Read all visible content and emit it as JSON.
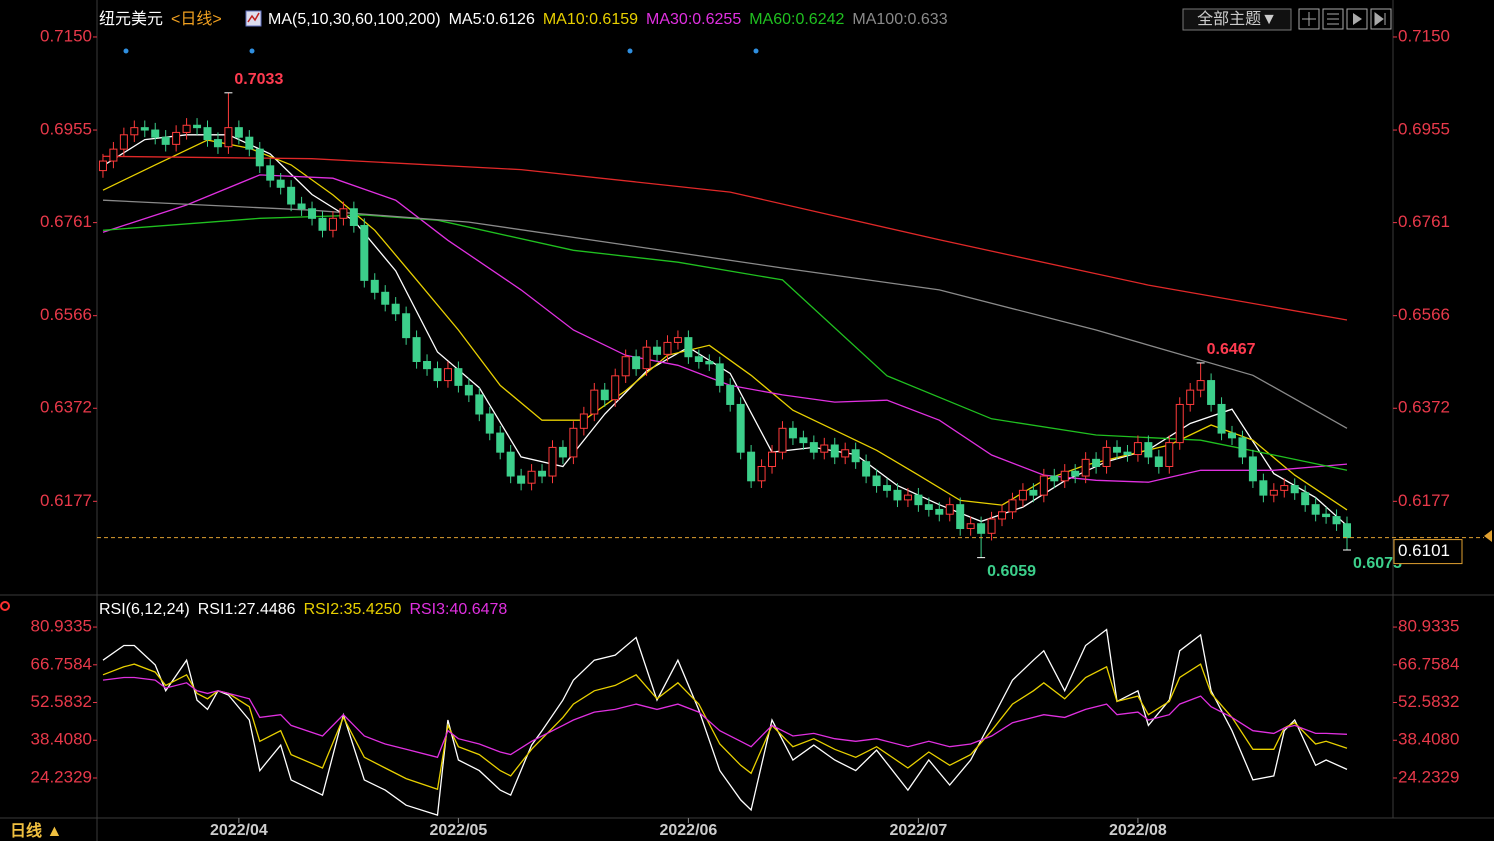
{
  "toolbar": {
    "theme_menu": "全部主题▼"
  },
  "footer": {
    "period_tab": "日线 ▲"
  },
  "chart_data": [
    {
      "type": "candlestick",
      "title": "纽元美元",
      "period": "<日线>",
      "indicator": "MA(5,10,30,60,100,200)",
      "x": [
        0,
        1,
        2,
        3,
        4,
        5,
        6,
        7,
        8,
        9,
        10,
        11,
        12,
        13,
        14,
        15,
        16,
        17,
        18,
        19,
        20,
        21,
        22,
        23,
        24,
        25,
        26,
        27,
        28,
        29,
        30,
        31,
        32,
        33,
        34,
        35,
        36,
        37,
        38,
        39,
        40,
        41,
        42,
        43,
        44,
        45,
        46,
        47,
        48,
        49,
        50,
        51,
        52,
        53,
        54,
        55,
        56,
        57,
        58,
        59,
        60,
        61,
        62,
        63,
        64,
        65,
        66,
        67,
        68,
        69,
        70,
        71,
        72,
        73,
        74,
        75,
        76,
        77,
        78,
        79,
        80,
        81,
        82,
        83,
        84,
        85,
        86,
        87,
        88,
        89,
        90,
        91,
        92,
        93,
        94,
        95,
        96,
        97,
        98,
        99,
        100,
        101,
        102,
        103,
        104,
        105,
        106,
        107,
        108,
        109,
        110,
        111,
        112,
        113,
        114,
        115,
        116,
        117,
        118,
        119
      ],
      "open": [
        0.687,
        0.689,
        0.6915,
        0.6945,
        0.696,
        0.6955,
        0.694,
        0.6925,
        0.695,
        0.6965,
        0.696,
        0.6935,
        0.692,
        0.696,
        0.694,
        0.6915,
        0.688,
        0.685,
        0.6835,
        0.68,
        0.679,
        0.677,
        0.6745,
        0.677,
        0.679,
        0.6755,
        0.664,
        0.6615,
        0.659,
        0.657,
        0.652,
        0.647,
        0.6455,
        0.643,
        0.6455,
        0.642,
        0.64,
        0.636,
        0.632,
        0.628,
        0.623,
        0.6215,
        0.624,
        0.623,
        0.629,
        0.627,
        0.633,
        0.636,
        0.641,
        0.639,
        0.644,
        0.648,
        0.6455,
        0.65,
        0.6485,
        0.651,
        0.652,
        0.648,
        0.647,
        0.6465,
        0.642,
        0.638,
        0.628,
        0.622,
        0.625,
        0.628,
        0.633,
        0.631,
        0.63,
        0.628,
        0.6295,
        0.627,
        0.6285,
        0.626,
        0.623,
        0.621,
        0.62,
        0.618,
        0.619,
        0.617,
        0.616,
        0.615,
        0.617,
        0.612,
        0.613,
        0.611,
        0.614,
        0.6155,
        0.618,
        0.62,
        0.619,
        0.623,
        0.622,
        0.624,
        0.623,
        0.6265,
        0.625,
        0.629,
        0.628,
        0.6275,
        0.63,
        0.627,
        0.625,
        0.63,
        0.638,
        0.641,
        0.643,
        0.638,
        0.632,
        0.631,
        0.627,
        0.622,
        0.619,
        0.62,
        0.621,
        0.6195,
        0.617,
        0.615,
        0.6145,
        0.613
      ],
      "high": [
        0.6905,
        0.693,
        0.696,
        0.6975,
        0.6975,
        0.697,
        0.6955,
        0.6965,
        0.698,
        0.698,
        0.6975,
        0.695,
        0.7033,
        0.6975,
        0.6955,
        0.693,
        0.6895,
        0.6865,
        0.685,
        0.6815,
        0.6805,
        0.6785,
        0.6785,
        0.6805,
        0.6805,
        0.677,
        0.6655,
        0.663,
        0.6605,
        0.6585,
        0.6535,
        0.6485,
        0.647,
        0.647,
        0.647,
        0.6435,
        0.6415,
        0.6375,
        0.6335,
        0.6295,
        0.6245,
        0.6255,
        0.6255,
        0.6305,
        0.6305,
        0.6345,
        0.6375,
        0.6425,
        0.6425,
        0.6455,
        0.6495,
        0.6495,
        0.6515,
        0.6515,
        0.6525,
        0.6535,
        0.6535,
        0.6495,
        0.6485,
        0.648,
        0.6435,
        0.6395,
        0.6295,
        0.6265,
        0.6295,
        0.6345,
        0.6345,
        0.6325,
        0.6315,
        0.631,
        0.631,
        0.63,
        0.63,
        0.6275,
        0.6245,
        0.6225,
        0.6215,
        0.6205,
        0.6205,
        0.6185,
        0.6175,
        0.6185,
        0.6185,
        0.6145,
        0.6145,
        0.6155,
        0.617,
        0.6195,
        0.6215,
        0.6215,
        0.6245,
        0.6245,
        0.6255,
        0.6255,
        0.628,
        0.628,
        0.6305,
        0.6305,
        0.6295,
        0.6315,
        0.6315,
        0.6285,
        0.6315,
        0.6395,
        0.6425,
        0.6467,
        0.6445,
        0.6395,
        0.6335,
        0.6325,
        0.6285,
        0.6235,
        0.6215,
        0.6225,
        0.6225,
        0.621,
        0.6185,
        0.6165,
        0.616,
        0.6145
      ],
      "low": [
        0.6855,
        0.6875,
        0.69,
        0.693,
        0.694,
        0.6925,
        0.691,
        0.691,
        0.6935,
        0.6945,
        0.692,
        0.6905,
        0.6905,
        0.6925,
        0.69,
        0.6865,
        0.6835,
        0.682,
        0.6785,
        0.6775,
        0.6755,
        0.673,
        0.673,
        0.6755,
        0.674,
        0.6625,
        0.66,
        0.6575,
        0.6555,
        0.6505,
        0.6455,
        0.644,
        0.6415,
        0.6415,
        0.6405,
        0.6385,
        0.6345,
        0.6305,
        0.6265,
        0.6215,
        0.62,
        0.62,
        0.6215,
        0.6215,
        0.6255,
        0.6255,
        0.6315,
        0.6345,
        0.6375,
        0.6375,
        0.6425,
        0.644,
        0.644,
        0.647,
        0.647,
        0.6495,
        0.6465,
        0.6455,
        0.645,
        0.6405,
        0.6365,
        0.6265,
        0.6205,
        0.6205,
        0.6235,
        0.6265,
        0.6295,
        0.6285,
        0.6265,
        0.6265,
        0.6255,
        0.6255,
        0.6245,
        0.6215,
        0.6195,
        0.6185,
        0.6165,
        0.6165,
        0.6155,
        0.6145,
        0.6135,
        0.6135,
        0.6105,
        0.6105,
        0.6059,
        0.6095,
        0.6125,
        0.614,
        0.6165,
        0.6175,
        0.6175,
        0.6205,
        0.6205,
        0.6215,
        0.6215,
        0.6235,
        0.6235,
        0.6265,
        0.626,
        0.626,
        0.6255,
        0.6235,
        0.6235,
        0.6285,
        0.6365,
        0.6395,
        0.6365,
        0.6305,
        0.6295,
        0.6255,
        0.6205,
        0.6175,
        0.6175,
        0.6185,
        0.618,
        0.6155,
        0.6135,
        0.613,
        0.6115,
        0.6075
      ],
      "close": [
        0.689,
        0.6915,
        0.6945,
        0.696,
        0.6955,
        0.694,
        0.6925,
        0.695,
        0.6965,
        0.696,
        0.6935,
        0.692,
        0.696,
        0.694,
        0.6915,
        0.688,
        0.685,
        0.6835,
        0.68,
        0.679,
        0.677,
        0.6745,
        0.677,
        0.679,
        0.6755,
        0.664,
        0.6615,
        0.659,
        0.657,
        0.652,
        0.647,
        0.6455,
        0.643,
        0.6455,
        0.642,
        0.64,
        0.636,
        0.632,
        0.628,
        0.623,
        0.6215,
        0.624,
        0.623,
        0.629,
        0.627,
        0.633,
        0.636,
        0.641,
        0.639,
        0.644,
        0.648,
        0.6455,
        0.65,
        0.6485,
        0.651,
        0.652,
        0.648,
        0.647,
        0.6465,
        0.642,
        0.638,
        0.628,
        0.622,
        0.625,
        0.628,
        0.633,
        0.631,
        0.63,
        0.628,
        0.6295,
        0.627,
        0.6285,
        0.626,
        0.623,
        0.621,
        0.62,
        0.618,
        0.619,
        0.617,
        0.616,
        0.615,
        0.617,
        0.612,
        0.613,
        0.611,
        0.614,
        0.6155,
        0.618,
        0.62,
        0.619,
        0.623,
        0.622,
        0.624,
        0.623,
        0.6265,
        0.625,
        0.629,
        0.628,
        0.6275,
        0.63,
        0.627,
        0.625,
        0.63,
        0.638,
        0.641,
        0.643,
        0.638,
        0.632,
        0.631,
        0.627,
        0.622,
        0.619,
        0.62,
        0.621,
        0.6195,
        0.617,
        0.615,
        0.6145,
        0.613,
        0.6101
      ],
      "up_color": "#ff3b3b",
      "down_color": "#3ccf8b",
      "last_color": "#e0a030",
      "xlim": [
        -0.57,
        123.4
      ],
      "xticks": [
        {
          "value": 13,
          "label": "2022/04"
        },
        {
          "value": 34,
          "label": "2022/05"
        },
        {
          "value": 56,
          "label": "2022/06"
        },
        {
          "value": 78,
          "label": "2022/07"
        },
        {
          "value": 99,
          "label": "2022/08"
        }
      ],
      "ylim": [
        0.5987,
        0.7217
      ],
      "yticks": [
        {
          "value": 0.715,
          "label": "0.7150"
        },
        0.6955,
        0.6761,
        0.6566,
        0.6372,
        0.6177
      ],
      "series": [
        {
          "name": "MA5:0.6126",
          "color": "#ffffff",
          "x": [
            0,
            4,
            8,
            12,
            16,
            20,
            24,
            28,
            32,
            36,
            40,
            44,
            48,
            52,
            56,
            60,
            64,
            68,
            72,
            76,
            80,
            84,
            88,
            92,
            96,
            100,
            104,
            108,
            112,
            116,
            119
          ],
          "values": [
            0.688,
            0.6935,
            0.6945,
            0.6945,
            0.6905,
            0.682,
            0.6765,
            0.666,
            0.649,
            0.6415,
            0.627,
            0.625,
            0.636,
            0.645,
            0.65,
            0.6445,
            0.628,
            0.629,
            0.6275,
            0.621,
            0.617,
            0.6135,
            0.6165,
            0.622,
            0.626,
            0.6285,
            0.634,
            0.637,
            0.6235,
            0.6185,
            0.6126
          ]
        },
        {
          "name": "MA10:0.6159",
          "color": "#e8d000",
          "x": [
            0,
            5,
            10,
            14,
            18,
            22,
            26,
            30,
            34,
            38,
            42,
            46,
            50,
            54,
            58,
            62,
            66,
            70,
            74,
            78,
            82,
            86,
            90,
            94,
            98,
            102,
            106,
            110,
            114,
            119
          ],
          "values": [
            0.6829,
            0.6882,
            0.6934,
            0.6917,
            0.6882,
            0.6819,
            0.6745,
            0.6641,
            0.6536,
            0.642,
            0.6347,
            0.6347,
            0.6409,
            0.6483,
            0.6504,
            0.6441,
            0.6368,
            0.6326,
            0.6284,
            0.6232,
            0.6179,
            0.6169,
            0.6221,
            0.6253,
            0.6274,
            0.6295,
            0.6337,
            0.6305,
            0.6232,
            0.6159
          ]
        },
        {
          "name": "MA30:0.6255",
          "color": "#e030e0",
          "x": [
            0,
            8,
            15,
            22,
            28,
            33,
            40,
            45,
            50,
            55,
            60,
            65,
            70,
            75,
            80,
            85,
            90,
            95,
            100,
            105,
            112,
            119
          ],
          "values": [
            0.6741,
            0.6798,
            0.6861,
            0.6854,
            0.6808,
            0.6724,
            0.662,
            0.6536,
            0.6483,
            0.6462,
            0.642,
            0.64,
            0.6385,
            0.6389,
            0.6347,
            0.6274,
            0.6232,
            0.6221,
            0.6217,
            0.6242,
            0.6242,
            0.6255
          ]
        },
        {
          "name": "MA60:0.6242",
          "color": "#20c020",
          "x": [
            0,
            15,
            25,
            32,
            45,
            55,
            65,
            75,
            85,
            95,
            105,
            112,
            119
          ],
          "values": [
            0.6745,
            0.677,
            0.6777,
            0.6766,
            0.6703,
            0.6678,
            0.6641,
            0.644,
            0.635,
            0.6316,
            0.6305,
            0.6274,
            0.6242
          ]
        },
        {
          "name": "MA100:0.633",
          "color": "#8a8a8a",
          "x": [
            0,
            20,
            35,
            50,
            65,
            80,
            95,
            110,
            119
          ],
          "values": [
            0.6808,
            0.6787,
            0.6762,
            0.6714,
            0.6666,
            0.662,
            0.6536,
            0.6441,
            0.633
          ]
        },
        {
          "color": "#e02828",
          "x": [
            0,
            20,
            40,
            60,
            80,
            100,
            119
          ],
          "values": [
            0.69,
            0.6895,
            0.6872,
            0.6825,
            0.6725,
            0.663,
            0.6557
          ]
        }
      ]
    },
    {
      "type": "line",
      "title": "RSI(6,12,24)",
      "xlim": [
        -0.57,
        123.4
      ],
      "x": [
        0,
        2,
        3,
        5,
        6,
        8,
        9,
        10,
        11,
        12,
        14,
        15,
        17,
        18,
        21,
        23,
        25,
        27,
        29,
        32,
        33,
        34,
        36,
        38,
        39,
        41,
        42,
        44,
        45,
        47,
        49,
        51,
        53,
        55,
        57,
        59,
        61,
        62,
        64,
        66,
        68,
        70,
        72,
        74,
        77,
        79,
        81,
        83,
        85,
        87,
        89,
        90,
        92,
        94,
        96,
        97,
        99,
        100,
        102,
        103,
        105,
        106,
        108,
        110,
        112,
        113,
        114,
        116,
        117,
        119
      ],
      "ylim": [
        9.2,
        91.1
      ],
      "yticks": [
        80.9335,
        66.7584,
        52.5832,
        {
          "value": 38.408,
          "label": "38.4080"
        },
        24.2329
      ],
      "series": [
        {
          "name": "RSI1:27.4486",
          "color": "#ffffff",
          "values": [
            68.5,
            74,
            74,
            66.7,
            57,
            68.5,
            53.5,
            50,
            57,
            55.4,
            46,
            27,
            36.6,
            23.5,
            17.8,
            47.9,
            23.5,
            19.7,
            14,
            10.3,
            46,
            31,
            27,
            19.7,
            17.8,
            36.6,
            42,
            53.5,
            61,
            68.5,
            70.4,
            77,
            53.5,
            68.5,
            49.8,
            27,
            16,
            12.2,
            46,
            31,
            36.6,
            31,
            27,
            34.7,
            19.7,
            31,
            21.6,
            31,
            46,
            61,
            68.5,
            72,
            57,
            74,
            80,
            53,
            57,
            44,
            53.5,
            72,
            78,
            57,
            42,
            23.5,
            25,
            42,
            46,
            29,
            31,
            27.4486
          ]
        },
        {
          "name": "RSI2:35.4250",
          "color": "#e8d000",
          "values": [
            63,
            66,
            67,
            64,
            59,
            63,
            56,
            54,
            57,
            56,
            51,
            38,
            42,
            33,
            28,
            47,
            32,
            28,
            24,
            20,
            44,
            36,
            33,
            27,
            25,
            35,
            39,
            47,
            52,
            57,
            59,
            63,
            54,
            60,
            52,
            37,
            29,
            26,
            44,
            36,
            39,
            35,
            32,
            36,
            28,
            34,
            29,
            33,
            42,
            52,
            57,
            60,
            54,
            62,
            66,
            53,
            55,
            48,
            53,
            62,
            67,
            56,
            47,
            35,
            35,
            43,
            45,
            37,
            38,
            35.425
          ]
        },
        {
          "name": "RSI3:40.6478",
          "color": "#e030e0",
          "values": [
            61,
            62,
            62,
            61,
            58,
            60,
            57,
            56,
            57,
            56,
            54,
            47,
            48,
            44,
            40,
            48,
            40,
            37,
            35,
            32,
            42,
            39,
            37,
            34,
            33,
            38,
            40,
            44,
            46,
            49,
            50,
            52,
            50,
            52,
            49,
            42,
            38,
            36,
            44,
            40,
            41,
            39,
            38,
            39,
            36,
            38,
            36,
            37,
            40,
            45,
            47,
            48,
            47,
            50,
            52,
            48,
            49,
            46,
            48,
            52,
            55,
            51,
            47,
            42,
            41,
            43,
            44,
            41,
            41,
            40.6478
          ]
        }
      ]
    }
  ]
}
